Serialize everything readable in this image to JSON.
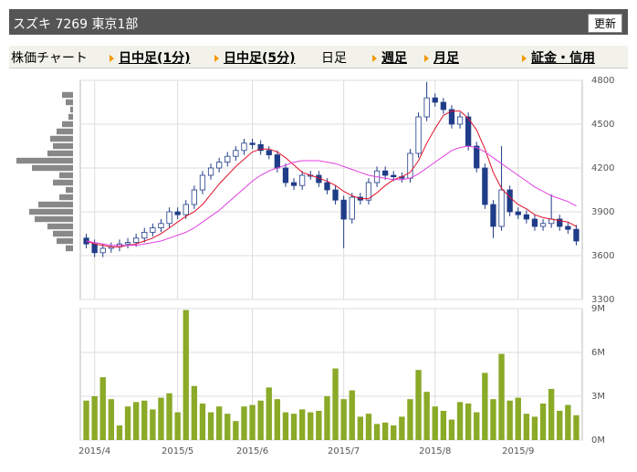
{
  "header": {
    "title": "スズキ 7269 東京1部",
    "button": "更新"
  },
  "nav": [
    "株価チャート",
    "日中足(1分)",
    "日中足(5分)",
    "日足",
    "週足",
    "月足",
    "証金・信用"
  ],
  "chart_data": {
    "type": "candlestick",
    "categories": [
      null,
      "2015/4",
      null,
      null,
      null,
      null,
      null,
      null,
      null,
      null,
      null,
      "2015/5",
      null,
      null,
      null,
      null,
      null,
      null,
      null,
      null,
      "2015/6",
      null,
      null,
      null,
      null,
      null,
      null,
      null,
      null,
      null,
      null,
      "2015/7",
      null,
      null,
      null,
      null,
      null,
      null,
      null,
      null,
      null,
      null,
      "2015/8",
      null,
      null,
      null,
      null,
      null,
      null,
      null,
      null,
      null,
      "2015/9",
      null,
      null,
      null,
      null,
      null,
      null,
      null
    ],
    "open": [
      3720,
      3680,
      3620,
      3650,
      3660,
      3680,
      3690,
      3720,
      3760,
      3790,
      3820,
      3900,
      3880,
      3950,
      4050,
      4150,
      4200,
      4240,
      4280,
      4320,
      4370,
      4360,
      4320,
      4290,
      4200,
      4100,
      4080,
      4150,
      4150,
      4100,
      4050,
      3980,
      3850,
      4000,
      3980,
      4100,
      4180,
      4150,
      4140,
      4130,
      4300,
      4550,
      4680,
      4650,
      4600,
      4500,
      4550,
      4350,
      4200,
      3950,
      3800,
      4050,
      3900,
      3880,
      3850,
      3800,
      3820,
      3850,
      3800,
      3780
    ],
    "high": [
      3750,
      3710,
      3680,
      3690,
      3710,
      3720,
      3750,
      3790,
      3820,
      3850,
      3930,
      3930,
      3980,
      4080,
      4180,
      4230,
      4270,
      4310,
      4350,
      4400,
      4400,
      4390,
      4350,
      4320,
      4230,
      4130,
      4180,
      4180,
      4180,
      4130,
      4080,
      4010,
      4030,
      4030,
      4130,
      4210,
      4210,
      4180,
      4170,
      4330,
      4580,
      4790,
      4710,
      4680,
      4630,
      4580,
      4580,
      4380,
      4230,
      3980,
      4350,
      4080,
      3930,
      3910,
      3880,
      3850,
      4020,
      3880,
      3830,
      3810
    ],
    "low": [
      3650,
      3590,
      3590,
      3620,
      3630,
      3650,
      3660,
      3690,
      3730,
      3760,
      3790,
      3850,
      3850,
      3920,
      4020,
      4120,
      4170,
      4210,
      4250,
      4290,
      4330,
      4290,
      4260,
      4170,
      4070,
      4050,
      4050,
      4120,
      4070,
      4020,
      3950,
      3650,
      3820,
      3950,
      3950,
      4070,
      4120,
      4110,
      4100,
      4100,
      4270,
      4520,
      4620,
      4570,
      4470,
      4470,
      4320,
      4170,
      3920,
      3720,
      3770,
      3870,
      3850,
      3820,
      3770,
      3770,
      3790,
      3770,
      3750,
      3670
    ],
    "close": [
      3680,
      3620,
      3650,
      3660,
      3680,
      3690,
      3720,
      3760,
      3790,
      3820,
      3900,
      3880,
      3950,
      4050,
      4150,
      4200,
      4240,
      4280,
      4320,
      4370,
      4360,
      4320,
      4290,
      4200,
      4100,
      4080,
      4150,
      4150,
      4100,
      4050,
      3980,
      3850,
      4000,
      3980,
      4100,
      4180,
      4150,
      4140,
      4130,
      4300,
      4550,
      4680,
      4650,
      4600,
      4500,
      4550,
      4350,
      4200,
      3950,
      3800,
      4050,
      3900,
      3880,
      3850,
      3800,
      3820,
      3850,
      3800,
      3780,
      3700
    ],
    "up_color": "#ffffff",
    "down_color": "#1f3c88",
    "edge_color": "#1f3c88",
    "ylim": [
      3300,
      4800
    ],
    "yticks": [
      3300,
      3600,
      3900,
      4200,
      4500,
      4800
    ],
    "series": [
      {
        "color": "#e0102a",
        "values": [
          3700,
          3680,
          3670,
          3660,
          3660,
          3670,
          3680,
          3700,
          3720,
          3750,
          3790,
          3830,
          3870,
          3900,
          3950,
          4020,
          4090,
          4150,
          4210,
          4260,
          4310,
          4330,
          4330,
          4310,
          4270,
          4220,
          4170,
          4150,
          4130,
          4110,
          4080,
          4040,
          4010,
          3990,
          3990,
          4030,
          4080,
          4120,
          4140,
          4170,
          4250,
          4370,
          4470,
          4560,
          4590,
          4590,
          4540,
          4460,
          4330,
          4170,
          4060,
          4000,
          3950,
          3920,
          3880,
          3860,
          3850,
          3840,
          3830,
          3800
        ]
      },
      {
        "color": "#e040e0",
        "values": [
          3700,
          3690,
          3680,
          3670,
          3670,
          3670,
          3670,
          3680,
          3690,
          3700,
          3720,
          3740,
          3760,
          3790,
          3830,
          3870,
          3910,
          3960,
          4010,
          4060,
          4110,
          4150,
          4180,
          4200,
          4220,
          4240,
          4250,
          4250,
          4250,
          4240,
          4230,
          4210,
          4190,
          4170,
          4150,
          4140,
          4130,
          4120,
          4120,
          4130,
          4160,
          4200,
          4240,
          4280,
          4320,
          4340,
          4350,
          4340,
          4310,
          4270,
          4230,
          4190,
          4150,
          4110,
          4070,
          4040,
          4010,
          3990,
          3970,
          3940
        ]
      }
    ],
    "volume": {
      "color": "#8aaa28",
      "values": [
        2.7,
        3.0,
        4.3,
        2.8,
        1.0,
        2.3,
        2.6,
        2.7,
        2.1,
        2.9,
        3.2,
        1.9,
        8.9,
        3.7,
        2.5,
        1.9,
        2.3,
        1.8,
        1.3,
        2.3,
        2.4,
        2.7,
        3.6,
        2.8,
        1.9,
        1.8,
        2.1,
        1.9,
        2.0,
        3.0,
        4.9,
        2.8,
        3.4,
        1.6,
        1.8,
        1.1,
        1.2,
        1.0,
        1.6,
        2.8,
        4.8,
        3.3,
        2.3,
        2.0,
        1.4,
        2.6,
        2.5,
        1.9,
        4.6,
        2.8,
        5.9,
        2.7,
        2.9,
        1.8,
        1.6,
        2.5,
        3.5,
        2.0,
        2.4,
        1.7
      ],
      "ylim": [
        0,
        9
      ],
      "yticks": [
        {
          "value": 0,
          "label": "0M"
        },
        {
          "value": 3,
          "label": "3M"
        },
        {
          "value": 6,
          "label": "6M"
        },
        {
          "value": 9,
          "label": "9M"
        }
      ]
    },
    "volume_profile": {
      "color": "#888888",
      "prices": [
        4700,
        4650,
        4600,
        4550,
        4500,
        4450,
        4400,
        4350,
        4300,
        4250,
        4200,
        4150,
        4100,
        4050,
        4000,
        3950,
        3900,
        3850,
        3800,
        3750,
        3700,
        3650
      ],
      "values": [
        12,
        8,
        3,
        5,
        12,
        18,
        25,
        22,
        28,
        62,
        45,
        15,
        22,
        8,
        15,
        38,
        48,
        42,
        28,
        22,
        18,
        8
      ]
    },
    "grid": true
  }
}
